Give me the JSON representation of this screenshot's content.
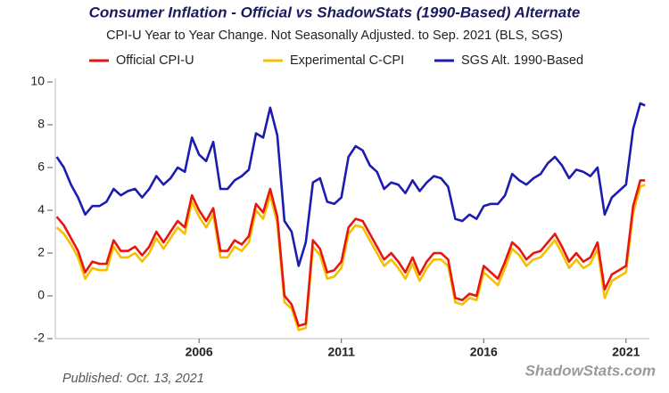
{
  "chart_data": {
    "type": "line",
    "title": "Consumer Inflation - Official vs ShadowStats (1990-Based) Alternate",
    "subtitle": "CPI-U Year to Year Change. Not Seasonally Adjusted. to Sep. 2021  (BLS, SGS)",
    "published": "Published: Oct. 13, 2021",
    "watermark": "ShadowStats.com",
    "x": [
      2001,
      2001.25,
      2001.5,
      2001.75,
      2002,
      2002.25,
      2002.5,
      2002.75,
      2003,
      2003.25,
      2003.5,
      2003.75,
      2004,
      2004.25,
      2004.5,
      2004.75,
      2005,
      2005.25,
      2005.5,
      2005.75,
      2006,
      2006.25,
      2006.5,
      2006.75,
      2007,
      2007.25,
      2007.5,
      2007.75,
      2008,
      2008.25,
      2008.5,
      2008.75,
      2009,
      2009.25,
      2009.5,
      2009.75,
      2010,
      2010.25,
      2010.5,
      2010.75,
      2011,
      2011.25,
      2011.5,
      2011.75,
      2012,
      2012.25,
      2012.5,
      2012.75,
      2013,
      2013.25,
      2013.5,
      2013.75,
      2014,
      2014.25,
      2014.5,
      2014.75,
      2015,
      2015.25,
      2015.5,
      2015.75,
      2016,
      2016.25,
      2016.5,
      2016.75,
      2017,
      2017.25,
      2017.5,
      2017.75,
      2018,
      2018.25,
      2018.5,
      2018.75,
      2019,
      2019.25,
      2019.5,
      2019.75,
      2020,
      2020.25,
      2020.5,
      2020.75,
      2021,
      2021.25,
      2021.5,
      2021.67
    ],
    "series": [
      {
        "name": "Official CPI-U",
        "color": "#e8160c",
        "values": [
          3.7,
          3.3,
          2.7,
          2.1,
          1.1,
          1.6,
          1.5,
          1.5,
          2.6,
          2.1,
          2.1,
          2.3,
          1.9,
          2.3,
          3.0,
          2.5,
          3.0,
          3.5,
          3.2,
          4.7,
          4.0,
          3.5,
          4.1,
          2.1,
          2.1,
          2.6,
          2.4,
          2.8,
          4.3,
          3.9,
          5.0,
          3.7,
          0.0,
          -0.4,
          -1.4,
          -1.3,
          2.6,
          2.2,
          1.1,
          1.2,
          1.6,
          3.2,
          3.6,
          3.5,
          2.9,
          2.3,
          1.7,
          2.0,
          1.6,
          1.1,
          1.8,
          1.0,
          1.6,
          2.0,
          2.0,
          1.7,
          -0.1,
          -0.2,
          0.1,
          0.0,
          1.4,
          1.1,
          0.8,
          1.6,
          2.5,
          2.2,
          1.7,
          2.0,
          2.1,
          2.5,
          2.9,
          2.3,
          1.6,
          2.0,
          1.6,
          1.8,
          2.5,
          0.3,
          1.0,
          1.2,
          1.4,
          4.2,
          5.4,
          5.4
        ]
      },
      {
        "name": "Experimental C-CPI",
        "color": "#f5c000",
        "values": [
          3.2,
          2.9,
          2.4,
          1.8,
          0.8,
          1.3,
          1.2,
          1.2,
          2.3,
          1.8,
          1.8,
          2.0,
          1.6,
          2.0,
          2.7,
          2.2,
          2.7,
          3.2,
          2.9,
          4.4,
          3.7,
          3.2,
          3.8,
          1.8,
          1.8,
          2.3,
          2.1,
          2.5,
          4.0,
          3.6,
          4.7,
          3.4,
          -0.3,
          -0.6,
          -1.6,
          -1.5,
          2.3,
          1.9,
          0.8,
          0.9,
          1.3,
          2.9,
          3.3,
          3.2,
          2.6,
          2.0,
          1.4,
          1.7,
          1.3,
          0.8,
          1.5,
          0.7,
          1.3,
          1.7,
          1.7,
          1.4,
          -0.3,
          -0.4,
          -0.1,
          -0.2,
          1.1,
          0.8,
          0.5,
          1.3,
          2.2,
          1.9,
          1.4,
          1.7,
          1.8,
          2.2,
          2.6,
          2.0,
          1.3,
          1.7,
          1.3,
          1.5,
          2.2,
          -0.1,
          0.7,
          0.9,
          1.1,
          3.9,
          5.1,
          5.2
        ]
      },
      {
        "name": "SGS  Alt. 1990-Based",
        "color": "#1c1cb0",
        "values": [
          6.5,
          6.0,
          5.2,
          4.6,
          3.8,
          4.2,
          4.2,
          4.4,
          5.0,
          4.7,
          4.9,
          5.0,
          4.6,
          5.0,
          5.6,
          5.2,
          5.5,
          6.0,
          5.8,
          7.4,
          6.6,
          6.3,
          7.2,
          5.0,
          5.0,
          5.4,
          5.6,
          5.9,
          7.6,
          7.4,
          8.8,
          7.5,
          3.5,
          3.0,
          1.4,
          2.5,
          5.3,
          5.5,
          4.4,
          4.3,
          4.6,
          6.5,
          7.0,
          6.8,
          6.1,
          5.8,
          5.0,
          5.3,
          5.2,
          4.8,
          5.4,
          4.9,
          5.3,
          5.6,
          5.5,
          5.1,
          3.6,
          3.5,
          3.8,
          3.6,
          4.2,
          4.3,
          4.3,
          4.7,
          5.7,
          5.4,
          5.2,
          5.5,
          5.7,
          6.2,
          6.5,
          6.1,
          5.5,
          5.9,
          5.8,
          5.6,
          6.0,
          3.8,
          4.6,
          4.9,
          5.2,
          7.8,
          9.0,
          8.9
        ]
      }
    ],
    "xlim": [
      2000.95,
      2021.82
    ],
    "xticks": [
      2006,
      2011,
      2016,
      2021
    ],
    "ylim": [
      -2,
      10
    ],
    "yticks": [
      -2,
      0,
      2,
      4,
      6,
      8,
      10
    ]
  }
}
